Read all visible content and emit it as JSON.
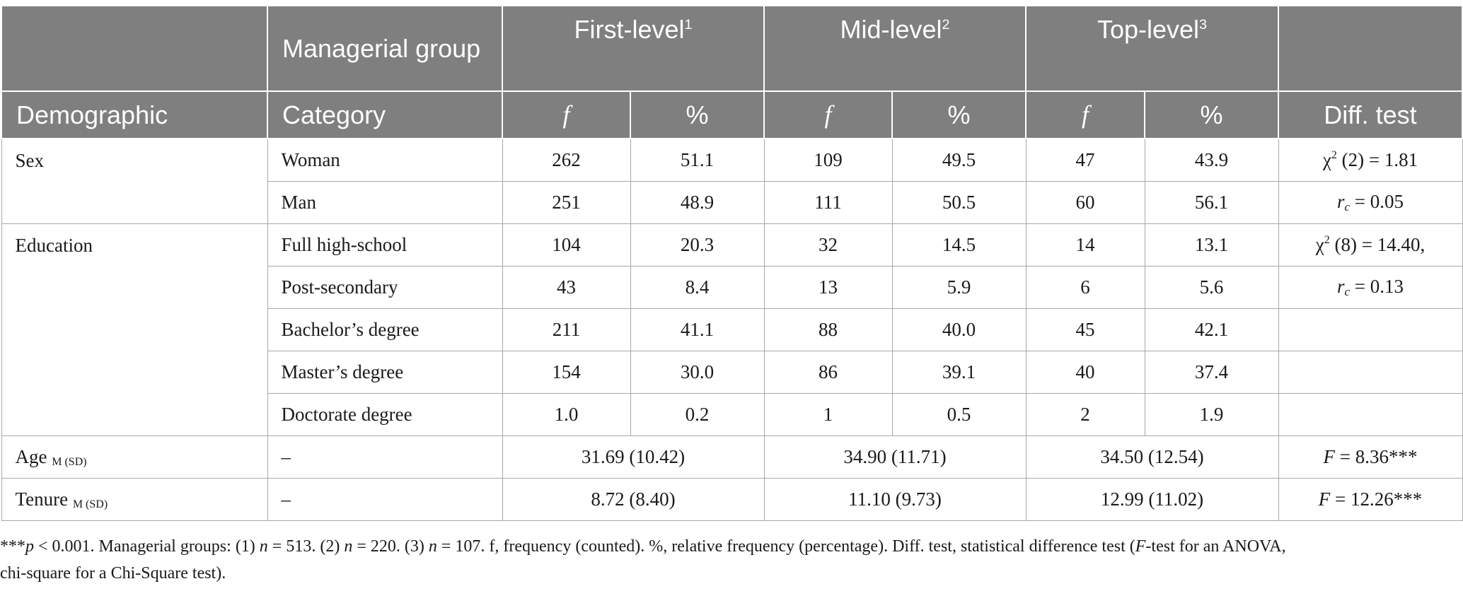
{
  "header": {
    "row1": {
      "col1": "",
      "col2": "Managerial group",
      "group1": "First-level",
      "group1_sup": "1",
      "group2": "Mid-level",
      "group2_sup": "2",
      "group3": "Top-level",
      "group3_sup": "3",
      "last": ""
    },
    "row2": {
      "demographic": "Demographic",
      "category": "Category",
      "f": "f",
      "pct": "%",
      "diff": "Diff. test"
    }
  },
  "rows": {
    "sex": {
      "label": "Sex",
      "woman": {
        "category": "Woman",
        "f1": "262",
        "p1": "51.1",
        "f2": "109",
        "p2": "49.5",
        "f3": "47",
        "p3": "43.9"
      },
      "man": {
        "category": "Man",
        "f1": "251",
        "p1": "48.9",
        "f2": "111",
        "p2": "50.5",
        "f3": "60",
        "p3": "56.1"
      },
      "test1_chi": "χ",
      "test1_sup": "2",
      "test1_rest": " (2) = 1.81",
      "test2_r": "r",
      "test2_sub": "c",
      "test2_rest": " = 0.05"
    },
    "education": {
      "label": "Education",
      "items": [
        {
          "category": "Full high-school",
          "f1": "104",
          "p1": "20.3",
          "f2": "32",
          "p2": "14.5",
          "f3": "14",
          "p3": "13.1"
        },
        {
          "category": "Post-secondary",
          "f1": "43",
          "p1": "8.4",
          "f2": "13",
          "p2": "5.9",
          "f3": "6",
          "p3": "5.6"
        },
        {
          "category": "Bachelor’s degree",
          "f1": "211",
          "p1": "41.1",
          "f2": "88",
          "p2": "40.0",
          "f3": "45",
          "p3": "42.1"
        },
        {
          "category": "Master’s degree",
          "f1": "154",
          "p1": "30.0",
          "f2": "86",
          "p2": "39.1",
          "f3": "40",
          "p3": "37.4"
        },
        {
          "category": "Doctorate degree",
          "f1": "1.0",
          "p1": "0.2",
          "f2": "1",
          "p2": "0.5",
          "f3": "2",
          "p3": "1.9"
        }
      ],
      "test1_chi": "χ",
      "test1_sup": "2",
      "test1_rest": " (8) = 14.40,",
      "test2_r": "r",
      "test2_sub": "c",
      "test2_rest": " = 0.13"
    },
    "age": {
      "label": "Age",
      "sub": "M (SD)",
      "category": "–",
      "v1": "31.69 (10.42)",
      "v2": "34.90 (11.71)",
      "v3": "34.50 (12.54)",
      "test_f": "F",
      "test_rest": " = 8.36***"
    },
    "tenure": {
      "label": "Tenure",
      "sub": "M (SD)",
      "category": "–",
      "v1": "8.72 (8.40)",
      "v2": "11.10 (9.73)",
      "v3": "12.99 (11.02)",
      "test_f": "F",
      "test_rest": " = 12.26***"
    }
  },
  "note": {
    "stars": "***",
    "p": "p",
    "part1": " < 0.001. Managerial groups: (1) ",
    "n1": "n",
    "part2": " = 513. (2) ",
    "n2": "n",
    "part3": " = 220. (3) ",
    "n3": "n",
    "part4": " = 107. f, frequency (counted). %, relative frequency (percentage). Diff. test, statistical difference test (",
    "F": "F",
    "part5": "-test for an ANOVA,",
    "line2": "chi-square for a Chi-Square test)."
  }
}
